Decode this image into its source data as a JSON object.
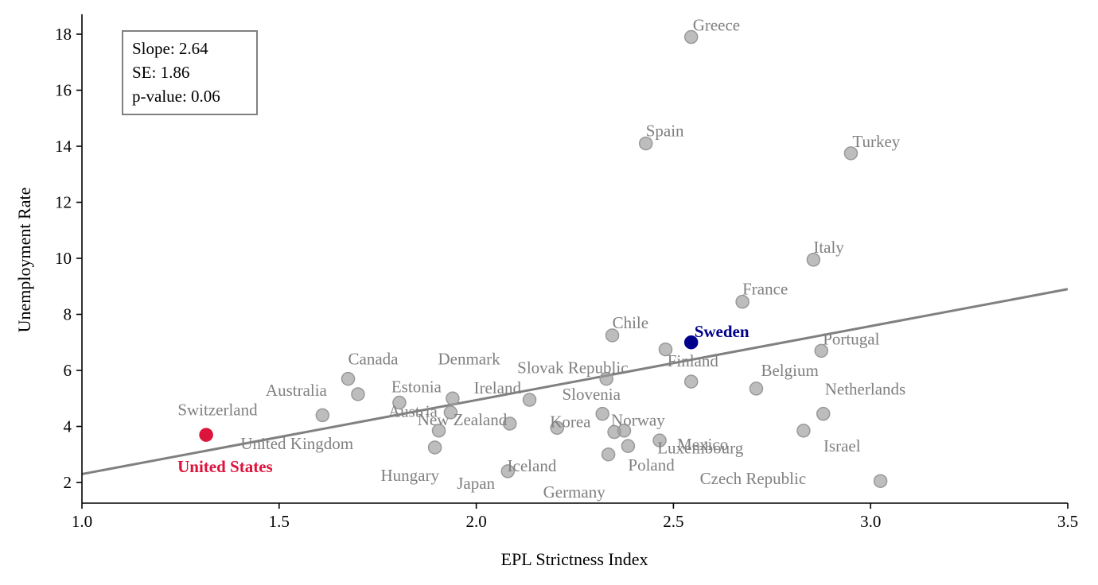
{
  "chart_data": {
    "type": "scatter",
    "xlabel": "EPL Strictness Index",
    "ylabel": "Unemployment Rate",
    "xlim": [
      1.0,
      3.5
    ],
    "ylim": [
      1.3,
      18.8
    ],
    "x_ticks": [
      "1.0",
      "1.5",
      "2.0",
      "2.5",
      "3.0",
      "3.5"
    ],
    "y_ticks": [
      "2",
      "4",
      "6",
      "8",
      "10",
      "12",
      "14",
      "16",
      "18"
    ],
    "grid": false,
    "colors": {
      "default": "#999999",
      "sweden": "#00008b",
      "united_states": "#dc143c",
      "fit_line": "#808080",
      "label": "#808080"
    },
    "fit_line": {
      "slope": 2.64,
      "intercept": -0.34
    },
    "stats": [
      "Slope: 2.64",
      "SE: 1.86",
      "p-value: 0.06"
    ],
    "points": [
      {
        "name": "Greece",
        "x": 2.545,
        "y": 17.9
      },
      {
        "name": "Spain",
        "x": 2.43,
        "y": 14.1
      },
      {
        "name": "Turkey",
        "x": 2.95,
        "y": 13.75
      },
      {
        "name": "Italy",
        "x": 2.855,
        "y": 9.95
      },
      {
        "name": "France",
        "x": 2.675,
        "y": 8.45
      },
      {
        "name": "Chile",
        "x": 2.345,
        "y": 7.25
      },
      {
        "name": "Sweden",
        "x": 2.545,
        "y": 7.0,
        "highlight": "sweden"
      },
      {
        "name": "Portugal",
        "x": 2.875,
        "y": 6.7
      },
      {
        "name": "Canada",
        "x": 1.675,
        "y": 5.7
      },
      {
        "name": "Denmark",
        "x": 2.48,
        "y": 6.75
      },
      {
        "name": "Slovak Republic",
        "x": 2.33,
        "y": 5.7
      },
      {
        "name": "Finland",
        "x": 2.545,
        "y": 5.6
      },
      {
        "name": "Belgium",
        "x": 2.71,
        "y": 5.35
      },
      {
        "name": "Australia",
        "x": 1.7,
        "y": 5.15
      },
      {
        "name": "Estonia",
        "x": 1.94,
        "y": 5.0
      },
      {
        "name": "Ireland",
        "x": 2.135,
        "y": 4.95
      },
      {
        "name": "Luxembourg",
        "x": 2.32,
        "y": 4.45
      },
      {
        "name": "Slovenia",
        "x": 2.375,
        "y": 3.85
      },
      {
        "name": "Netherlands",
        "x": 2.88,
        "y": 4.45
      },
      {
        "name": "Switzerland",
        "x": 1.61,
        "y": 4.4
      },
      {
        "name": "Austria",
        "x": 1.805,
        "y": 4.85
      },
      {
        "name": "United Kingdom",
        "x": 1.935,
        "y": 4.5
      },
      {
        "name": "New Zealand",
        "x": 2.085,
        "y": 4.1
      },
      {
        "name": "Korea",
        "x": 2.205,
        "y": 3.95
      },
      {
        "name": "Norway",
        "x": 2.35,
        "y": 3.8
      },
      {
        "name": "Israel",
        "x": 2.83,
        "y": 3.85
      },
      {
        "name": "Mexico",
        "x": 2.465,
        "y": 3.5
      },
      {
        "name": "United States",
        "x": 1.315,
        "y": 3.7,
        "highlight": "united_states"
      },
      {
        "name": "Hungary",
        "x": 1.905,
        "y": 3.85
      },
      {
        "name": "Iceland",
        "x": 1.895,
        "y": 3.25
      },
      {
        "name": "Poland",
        "x": 2.385,
        "y": 3.3
      },
      {
        "name": "Czech Republic",
        "x": 2.335,
        "y": 3.0
      },
      {
        "name": "Japan",
        "x": 2.08,
        "y": 2.4
      },
      {
        "name": "Germany",
        "x": 3.025,
        "y": 2.05
      }
    ]
  }
}
